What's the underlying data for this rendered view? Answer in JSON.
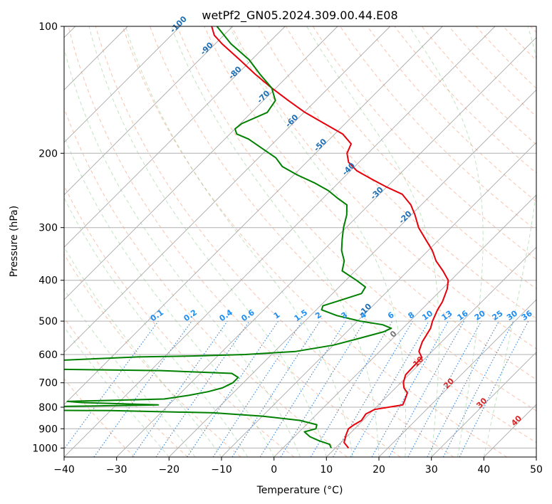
{
  "chart_data": {
    "type": "skew-t",
    "title": "wetPf2_GN05.2024.309.00.44.E08",
    "xlabel": "Temperature (°C)",
    "ylabel": "Pressure (hPa)",
    "xlim": [
      -40,
      50
    ],
    "ylim": [
      1050,
      100
    ],
    "y_scale": "log",
    "grid": true,
    "x_ticks": [
      "−40",
      "−30",
      "−20",
      "−10",
      "0",
      "10",
      "20",
      "30",
      "40",
      "50"
    ],
    "x_tick_values": [
      -40,
      -30,
      -20,
      -10,
      0,
      10,
      20,
      30,
      40,
      50
    ],
    "y_ticks": [
      "100",
      "200",
      "300",
      "400",
      "500",
      "600",
      "700",
      "800",
      "900",
      "1000"
    ],
    "y_tick_values": [
      100,
      200,
      300,
      400,
      500,
      600,
      700,
      800,
      900,
      1000
    ],
    "isotherm_labels": [
      {
        "value": -100,
        "text": "-100"
      },
      {
        "value": -90,
        "text": "-90"
      },
      {
        "value": -80,
        "text": "-80"
      },
      {
        "value": -70,
        "text": "-70"
      },
      {
        "value": -60,
        "text": "-60"
      },
      {
        "value": -50,
        "text": "-50"
      },
      {
        "value": -40,
        "text": "-40"
      },
      {
        "value": -30,
        "text": "-30"
      },
      {
        "value": -20,
        "text": "-20"
      },
      {
        "value": -10,
        "text": "-10"
      },
      {
        "value": 0,
        "text": "0"
      },
      {
        "value": 10,
        "text": "10"
      },
      {
        "value": 20,
        "text": "20"
      },
      {
        "value": 30,
        "text": "30"
      },
      {
        "value": 40,
        "text": "40"
      }
    ],
    "mixing_ratio_labels": [
      "0.1",
      "0.2",
      "0.4",
      "0.6",
      "1",
      "1.5",
      "2",
      "3",
      "4",
      "6",
      "8",
      "10",
      "13",
      "16",
      "20",
      "25",
      "30",
      "36"
    ],
    "mixing_ratio_values": [
      0.1,
      0.2,
      0.4,
      0.6,
      1,
      1.5,
      2,
      3,
      4,
      6,
      8,
      10,
      13,
      16,
      20,
      25,
      30,
      36
    ],
    "series": [
      {
        "color": "#e8000b",
        "points": [
          [
            1000,
            12.5
          ],
          [
            970,
            10.6
          ],
          [
            930,
            9.5
          ],
          [
            900,
            8.8
          ],
          [
            880,
            9.1
          ],
          [
            860,
            9.7
          ],
          [
            830,
            9.3
          ],
          [
            810,
            10.1
          ],
          [
            795,
            13.5
          ],
          [
            790,
            14.6
          ],
          [
            770,
            14.1
          ],
          [
            740,
            13.2
          ],
          [
            720,
            11.6
          ],
          [
            700,
            10.5
          ],
          [
            670,
            9.4
          ],
          [
            640,
            9.3
          ],
          [
            610,
            9.2
          ],
          [
            590,
            7.5
          ],
          [
            560,
            6.3
          ],
          [
            520,
            5.3
          ],
          [
            500,
            4.3
          ],
          [
            470,
            3.1
          ],
          [
            450,
            2.5
          ],
          [
            420,
            1.0
          ],
          [
            400,
            -0.5
          ],
          [
            380,
            -3.3
          ],
          [
            360,
            -6.5
          ],
          [
            340,
            -9.2
          ],
          [
            320,
            -12.6
          ],
          [
            300,
            -16.2
          ],
          [
            280,
            -19.3
          ],
          [
            265,
            -22.0
          ],
          [
            250,
            -25.7
          ],
          [
            240,
            -30.2
          ],
          [
            230,
            -34.5
          ],
          [
            220,
            -38.8
          ],
          [
            210,
            -42.0
          ],
          [
            200,
            -44.0
          ],
          [
            190,
            -45.0
          ],
          [
            180,
            -48.5
          ],
          [
            170,
            -54.0
          ],
          [
            160,
            -59.8
          ],
          [
            150,
            -65.2
          ],
          [
            140,
            -70.8
          ],
          [
            130,
            -76.5
          ],
          [
            120,
            -82.3
          ],
          [
            110,
            -88.7
          ],
          [
            105,
            -91.8
          ],
          [
            100,
            -94.0
          ]
        ]
      },
      {
        "color": "#008000",
        "points": [
          [
            1000,
            9.2
          ],
          [
            980,
            8.2
          ],
          [
            960,
            5.4
          ],
          [
            940,
            3.0
          ],
          [
            915,
            1.0
          ],
          [
            900,
            2.6
          ],
          [
            880,
            2.0
          ],
          [
            860,
            -2.0
          ],
          [
            840,
            -10.0
          ],
          [
            825,
            -20.0
          ],
          [
            815,
            -40.0
          ],
          [
            812,
            -70.0
          ],
          [
            810,
            -90.0
          ],
          [
            808,
            -70.0
          ],
          [
            800,
            -60.0
          ],
          [
            795,
            -45.0
          ],
          [
            790,
            -32.0
          ],
          [
            780,
            -47.0
          ],
          [
            775,
            -50.0
          ],
          [
            765,
            -32.0
          ],
          [
            750,
            -28.0
          ],
          [
            735,
            -25.0
          ],
          [
            720,
            -23.0
          ],
          [
            700,
            -22.0
          ],
          [
            680,
            -22.0
          ],
          [
            665,
            -24.0
          ],
          [
            655,
            -38.0
          ],
          [
            650,
            -60.0
          ],
          [
            645,
            -90.0
          ],
          [
            620,
            -60.0
          ],
          [
            608,
            -45.0
          ],
          [
            605,
            -35.0
          ],
          [
            600,
            -25.0
          ],
          [
            590,
            -16.0
          ],
          [
            570,
            -10.0
          ],
          [
            550,
            -6.5
          ],
          [
            530,
            -3.0
          ],
          [
            520,
            -2.2
          ],
          [
            510,
            -4.5
          ],
          [
            500,
            -9.5
          ],
          [
            485,
            -15.0
          ],
          [
            470,
            -19.0
          ],
          [
            460,
            -19.5
          ],
          [
            445,
            -17.0
          ],
          [
            430,
            -14.5
          ],
          [
            415,
            -15.0
          ],
          [
            400,
            -18.0
          ],
          [
            380,
            -22.5
          ],
          [
            360,
            -24.0
          ],
          [
            340,
            -26.5
          ],
          [
            320,
            -28.5
          ],
          [
            300,
            -30.5
          ],
          [
            280,
            -32.3
          ],
          [
            265,
            -34.2
          ],
          [
            255,
            -37.4
          ],
          [
            245,
            -40.5
          ],
          [
            235,
            -44.6
          ],
          [
            225,
            -49.4
          ],
          [
            215,
            -53.8
          ],
          [
            205,
            -56.7
          ],
          [
            195,
            -61.0
          ],
          [
            185,
            -65.5
          ],
          [
            180,
            -68.7
          ],
          [
            175,
            -70.0
          ],
          [
            170,
            -69.7
          ],
          [
            160,
            -67.0
          ],
          [
            150,
            -67.7
          ],
          [
            140,
            -70.8
          ],
          [
            130,
            -75.6
          ],
          [
            120,
            -80.5
          ],
          [
            110,
            -87.0
          ],
          [
            100,
            -93.0
          ]
        ]
      }
    ]
  }
}
